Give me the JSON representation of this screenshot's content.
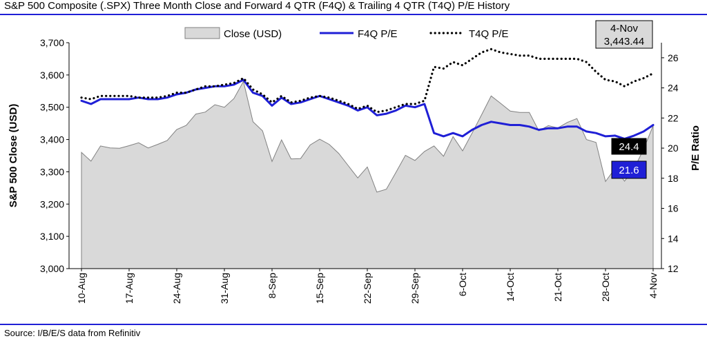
{
  "title": "S&P 500 Composite (.SPX) Three Month Close and Forward 4 QTR (F4Q) & Trailing 4 QTR (T4Q) P/E History",
  "source": "Source: I/B/E/S data from Refinitiv",
  "colors": {
    "close_fill": "#d9d9d9",
    "close_stroke": "#808080",
    "f4q": "#1f1fd6",
    "t4q": "#000000",
    "rule": "#1f1fd6"
  },
  "chart_data": {
    "type": "area",
    "x_tick_labels": [
      "10-Aug",
      "17-Aug",
      "24-Aug",
      "31-Aug",
      "8-Sep",
      "15-Sep",
      "22-Sep",
      "29-Sep",
      "6-Oct",
      "14-Oct",
      "21-Oct",
      "28-Oct",
      "4-Nov"
    ],
    "x_tick_index": [
      0,
      5,
      10,
      15,
      20,
      25,
      30,
      35,
      40,
      45,
      50,
      55,
      60
    ],
    "left_axis": {
      "label": "S&P 500 Close (USD)",
      "ylim": [
        3000,
        3700
      ],
      "ticks": [
        "3,000",
        "3,100",
        "3,200",
        "3,300",
        "3,400",
        "3,500",
        "3,600",
        "3,700"
      ]
    },
    "right_axis": {
      "label": "P/E Ratio",
      "ylim": [
        12,
        27
      ],
      "ticks": [
        "12",
        "14",
        "16",
        "18",
        "20",
        "22",
        "24",
        "26"
      ]
    },
    "series": [
      {
        "name": "Close (USD)",
        "axis": "left",
        "values": [
          3360,
          3333,
          3380,
          3374,
          3373,
          3381,
          3390,
          3374,
          3385,
          3397,
          3431,
          3444,
          3479,
          3485,
          3508,
          3500,
          3527,
          3580,
          3455,
          3427,
          3332,
          3399,
          3340,
          3341,
          3383,
          3401,
          3385,
          3357,
          3319,
          3281,
          3315,
          3237,
          3246,
          3298,
          3351,
          3335,
          3363,
          3380,
          3348,
          3409,
          3365,
          3420,
          3477,
          3535,
          3512,
          3488,
          3484,
          3484,
          3427,
          3443,
          3436,
          3453,
          3465,
          3400,
          3391,
          3270,
          3310,
          3271,
          3310,
          3370,
          3443
        ]
      },
      {
        "name": "F4Q P/E",
        "axis": "left",
        "values": [
          3520,
          3510,
          3525,
          3525,
          3525,
          3525,
          3530,
          3525,
          3525,
          3530,
          3540,
          3545,
          3555,
          3560,
          3565,
          3565,
          3570,
          3585,
          3545,
          3535,
          3505,
          3530,
          3510,
          3515,
          3525,
          3535,
          3525,
          3515,
          3505,
          3490,
          3500,
          3475,
          3480,
          3490,
          3505,
          3500,
          3510,
          3420,
          3410,
          3420,
          3410,
          3430,
          3445,
          3455,
          3450,
          3445,
          3445,
          3440,
          3430,
          3435,
          3435,
          3440,
          3440,
          3425,
          3420,
          3410,
          3412,
          3402,
          3412,
          3425,
          3445
        ]
      },
      {
        "name": "T4Q P/E",
        "axis": "left",
        "values": [
          3530,
          3525,
          3535,
          3535,
          3535,
          3535,
          3530,
          3530,
          3530,
          3535,
          3545,
          3545,
          3555,
          3565,
          3565,
          3570,
          3575,
          3590,
          3555,
          3540,
          3515,
          3535,
          3515,
          3520,
          3530,
          3535,
          3530,
          3520,
          3510,
          3495,
          3505,
          3485,
          3490,
          3500,
          3510,
          3510,
          3520,
          3625,
          3620,
          3640,
          3630,
          3650,
          3670,
          3680,
          3670,
          3665,
          3660,
          3660,
          3650,
          3650,
          3650,
          3650,
          3650,
          3640,
          3610,
          3585,
          3580,
          3565,
          3580,
          3590,
          3605
        ]
      }
    ],
    "callouts": [
      {
        "label": "4-Nov",
        "value": "3,443.44"
      },
      {
        "label": "24.4"
      },
      {
        "label": "21.6"
      }
    ]
  }
}
